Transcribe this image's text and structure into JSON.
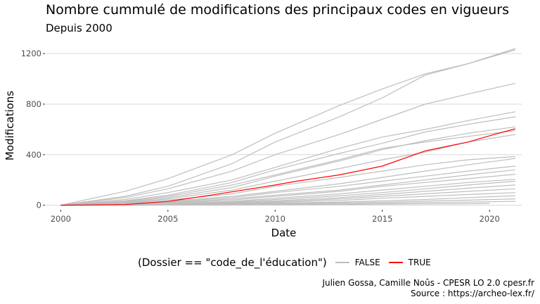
{
  "title": "Nombre cummulé de modifications des principaux codes en vigueurs",
  "subtitle": "Depuis 2000",
  "caption": [
    "Julien Gossa, Camille Noûs - CPESR LO 2.0 cpesr.fr",
    "Source : https://archeo-lex.fr/"
  ],
  "legend": {
    "title": "(Dossier == \"code_de_l'éducation\")",
    "items": [
      {
        "label": "FALSE",
        "color": "#bebebe"
      },
      {
        "label": "TRUE",
        "color": "#ff0000"
      }
    ]
  },
  "colors": {
    "background": "#ffffff",
    "grid": "#d9d9d9",
    "false_series": "#bebebe",
    "true_series": "#ff0000"
  },
  "chart_data": {
    "type": "line",
    "xlabel": "Date",
    "ylabel": "Modifications",
    "xlim": [
      1999.3,
      2021.5
    ],
    "ylim": [
      -30,
      1290
    ],
    "x_ticks": [
      2000,
      2005,
      2010,
      2015,
      2020
    ],
    "y_ticks": [
      0,
      400,
      800,
      1200
    ],
    "grid": "horizontal",
    "legend_position": "bottom",
    "series": [
      {
        "group": "FALSE",
        "x": [
          2000,
          2003,
          2005,
          2008,
          2010,
          2013,
          2015,
          2017,
          2019,
          2021.2
        ],
        "y": [
          0,
          110,
          210,
          400,
          570,
          790,
          920,
          1040,
          1120,
          1240
        ]
      },
      {
        "group": "FALSE",
        "x": [
          2000,
          2003,
          2005,
          2008,
          2010,
          2013,
          2015,
          2017,
          2019,
          2021.2
        ],
        "y": [
          0,
          70,
          150,
          330,
          500,
          700,
          850,
          1030,
          1120,
          1230
        ]
      },
      {
        "group": "FALSE",
        "x": [
          2000,
          2003,
          2005,
          2008,
          2010,
          2013,
          2015,
          2017,
          2019,
          2021.2
        ],
        "y": [
          0,
          60,
          130,
          270,
          400,
          560,
          680,
          800,
          880,
          965
        ]
      },
      {
        "group": "FALSE",
        "x": [
          2000,
          2003,
          2005,
          2008,
          2010,
          2013,
          2015,
          2017,
          2019,
          2021.2
        ],
        "y": [
          0,
          45,
          100,
          200,
          300,
          450,
          540,
          600,
          670,
          740
        ]
      },
      {
        "group": "FALSE",
        "x": [
          2000,
          2003,
          2005,
          2008,
          2010,
          2013,
          2015,
          2017,
          2019,
          2021.2
        ],
        "y": [
          0,
          35,
          80,
          180,
          280,
          410,
          490,
          580,
          640,
          700
        ]
      },
      {
        "group": "FALSE",
        "x": [
          2000,
          2003,
          2005,
          2008,
          2010,
          2013,
          2015,
          2017,
          2019,
          2021.2
        ],
        "y": [
          0,
          25,
          60,
          140,
          230,
          350,
          440,
          510,
          570,
          620
        ]
      },
      {
        "group": "FALSE",
        "x": [
          2000,
          2003,
          2005,
          2008,
          2010,
          2013,
          2015,
          2017,
          2019,
          2021.2
        ],
        "y": [
          0,
          30,
          70,
          160,
          240,
          360,
          450,
          500,
          545,
          590
        ]
      },
      {
        "group": "FALSE",
        "x": [
          2000,
          2003,
          2005,
          2008,
          2010,
          2013,
          2015,
          2017,
          2019,
          2021.2
        ],
        "y": [
          0,
          20,
          50,
          120,
          190,
          290,
          360,
          420,
          500,
          560
        ]
      },
      {
        "group": "FALSE",
        "x": [
          2000,
          2003,
          2005,
          2008,
          2010,
          2013,
          2015,
          2017,
          2019,
          2021.2
        ],
        "y": [
          0,
          15,
          40,
          90,
          150,
          220,
          270,
          320,
          360,
          385
        ]
      },
      {
        "group": "FALSE",
        "x": [
          2000,
          2003,
          2005,
          2008,
          2010,
          2013,
          2015,
          2017,
          2019,
          2021.2
        ],
        "y": [
          0,
          12,
          30,
          70,
          110,
          170,
          220,
          270,
          320,
          370
        ]
      },
      {
        "group": "FALSE",
        "x": [
          2000,
          2003,
          2005,
          2008,
          2010,
          2013,
          2015,
          2017,
          2019,
          2021.2
        ],
        "y": [
          0,
          10,
          25,
          60,
          100,
          150,
          190,
          230,
          270,
          310
        ]
      },
      {
        "group": "FALSE",
        "x": [
          2000,
          2003,
          2005,
          2008,
          2010,
          2013,
          2015,
          2017,
          2019,
          2021.2
        ],
        "y": [
          0,
          8,
          20,
          50,
          80,
          120,
          160,
          200,
          240,
          280
        ]
      },
      {
        "group": "FALSE",
        "x": [
          2000,
          2003,
          2005,
          2008,
          2010,
          2013,
          2015,
          2017,
          2019,
          2021.2
        ],
        "y": [
          0,
          6,
          15,
          40,
          70,
          110,
          150,
          180,
          210,
          245
        ]
      },
      {
        "group": "FALSE",
        "x": [
          2000,
          2003,
          2005,
          2008,
          2010,
          2013,
          2015,
          2017,
          2019,
          2021.2
        ],
        "y": [
          0,
          5,
          12,
          30,
          55,
          90,
          120,
          150,
          180,
          205
        ]
      },
      {
        "group": "FALSE",
        "x": [
          2000,
          2003,
          2005,
          2008,
          2010,
          2013,
          2015,
          2017,
          2019,
          2021.2
        ],
        "y": [
          0,
          4,
          10,
          25,
          45,
          75,
          100,
          130,
          160,
          190
        ]
      },
      {
        "group": "FALSE",
        "x": [
          2000,
          2003,
          2005,
          2008,
          2010,
          2013,
          2015,
          2017,
          2019,
          2021.2
        ],
        "y": [
          0,
          3,
          8,
          20,
          35,
          60,
          85,
          110,
          135,
          160
        ]
      },
      {
        "group": "FALSE",
        "x": [
          2000,
          2003,
          2005,
          2008,
          2010,
          2013,
          2015,
          2017,
          2019,
          2021.2
        ],
        "y": [
          0,
          3,
          6,
          15,
          28,
          50,
          70,
          90,
          110,
          130
        ]
      },
      {
        "group": "FALSE",
        "x": [
          2000,
          2003,
          2005,
          2008,
          2010,
          2013,
          2015,
          2017,
          2019,
          2021.2
        ],
        "y": [
          0,
          2,
          5,
          12,
          22,
          38,
          55,
          70,
          85,
          100
        ]
      },
      {
        "group": "FALSE",
        "x": [
          2000,
          2003,
          2005,
          2008,
          2010,
          2013,
          2015,
          2017,
          2019,
          2021.2
        ],
        "y": [
          0,
          1,
          3,
          8,
          15,
          25,
          35,
          45,
          60,
          75
        ]
      },
      {
        "group": "FALSE",
        "x": [
          2000,
          2003,
          2005,
          2008,
          2010,
          2013,
          2015,
          2017,
          2019,
          2021.2
        ],
        "y": [
          0,
          1,
          2,
          5,
          10,
          18,
          25,
          32,
          40,
          50
        ]
      },
      {
        "group": "FALSE",
        "x": [
          2000,
          2003,
          2005,
          2008,
          2010,
          2013,
          2015,
          2017,
          2019,
          2021.2
        ],
        "y": [
          0,
          0,
          1,
          3,
          6,
          10,
          15,
          20,
          25,
          30
        ]
      },
      {
        "group": "FALSE",
        "x": [
          2000,
          2003,
          2005,
          2008,
          2010,
          2013,
          2015,
          2017,
          2019,
          2020
        ],
        "y": [
          0,
          0,
          1,
          2,
          4,
          6,
          8,
          10,
          12,
          14
        ]
      },
      {
        "group": "TRUE",
        "x": [
          2000,
          2003,
          2005,
          2007,
          2010,
          2011,
          2013,
          2015,
          2017,
          2019,
          2020,
          2021.2
        ],
        "y": [
          0,
          5,
          30,
          80,
          160,
          190,
          240,
          310,
          430,
          500,
          550,
          605
        ]
      }
    ]
  }
}
